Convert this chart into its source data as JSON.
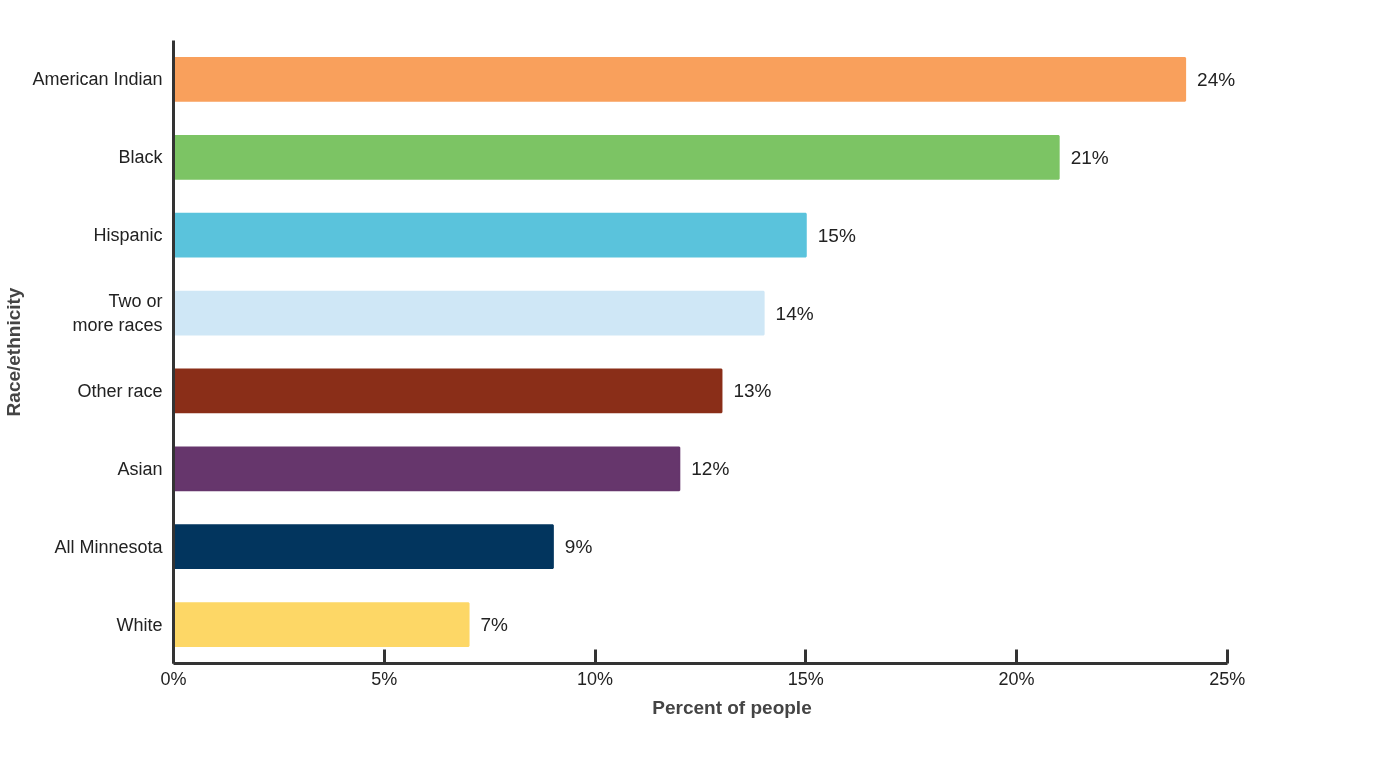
{
  "chart_data": {
    "type": "bar",
    "orientation": "horizontal",
    "xlabel": "Percent of people",
    "ylabel": "Race/ethnicity",
    "categories": [
      "American Indian",
      "Black",
      "Hispanic",
      "Two or\nmore races",
      "Other race",
      "Asian",
      "All Minnesota",
      "White"
    ],
    "values": [
      24,
      21,
      15,
      14,
      13,
      12,
      9,
      7
    ],
    "colors": [
      "#f9a05c",
      "#7cc464",
      "#5ac3dc",
      "#cfe7f6",
      "#8a2e18",
      "#66366c",
      "#02355e",
      "#fdd766"
    ],
    "value_labels": [
      "24%",
      "21%",
      "15%",
      "14%",
      "13%",
      "12%",
      "9%",
      "7%"
    ],
    "xlim": [
      0,
      25
    ],
    "xticks": [
      {
        "value": 0,
        "label": "0%"
      },
      {
        "value": 5,
        "label": "5%"
      },
      {
        "value": 10,
        "label": "10%"
      },
      {
        "value": 15,
        "label": "15%"
      },
      {
        "value": 20,
        "label": "20%"
      },
      {
        "value": 25,
        "label": "25%"
      }
    ],
    "grid": false
  }
}
